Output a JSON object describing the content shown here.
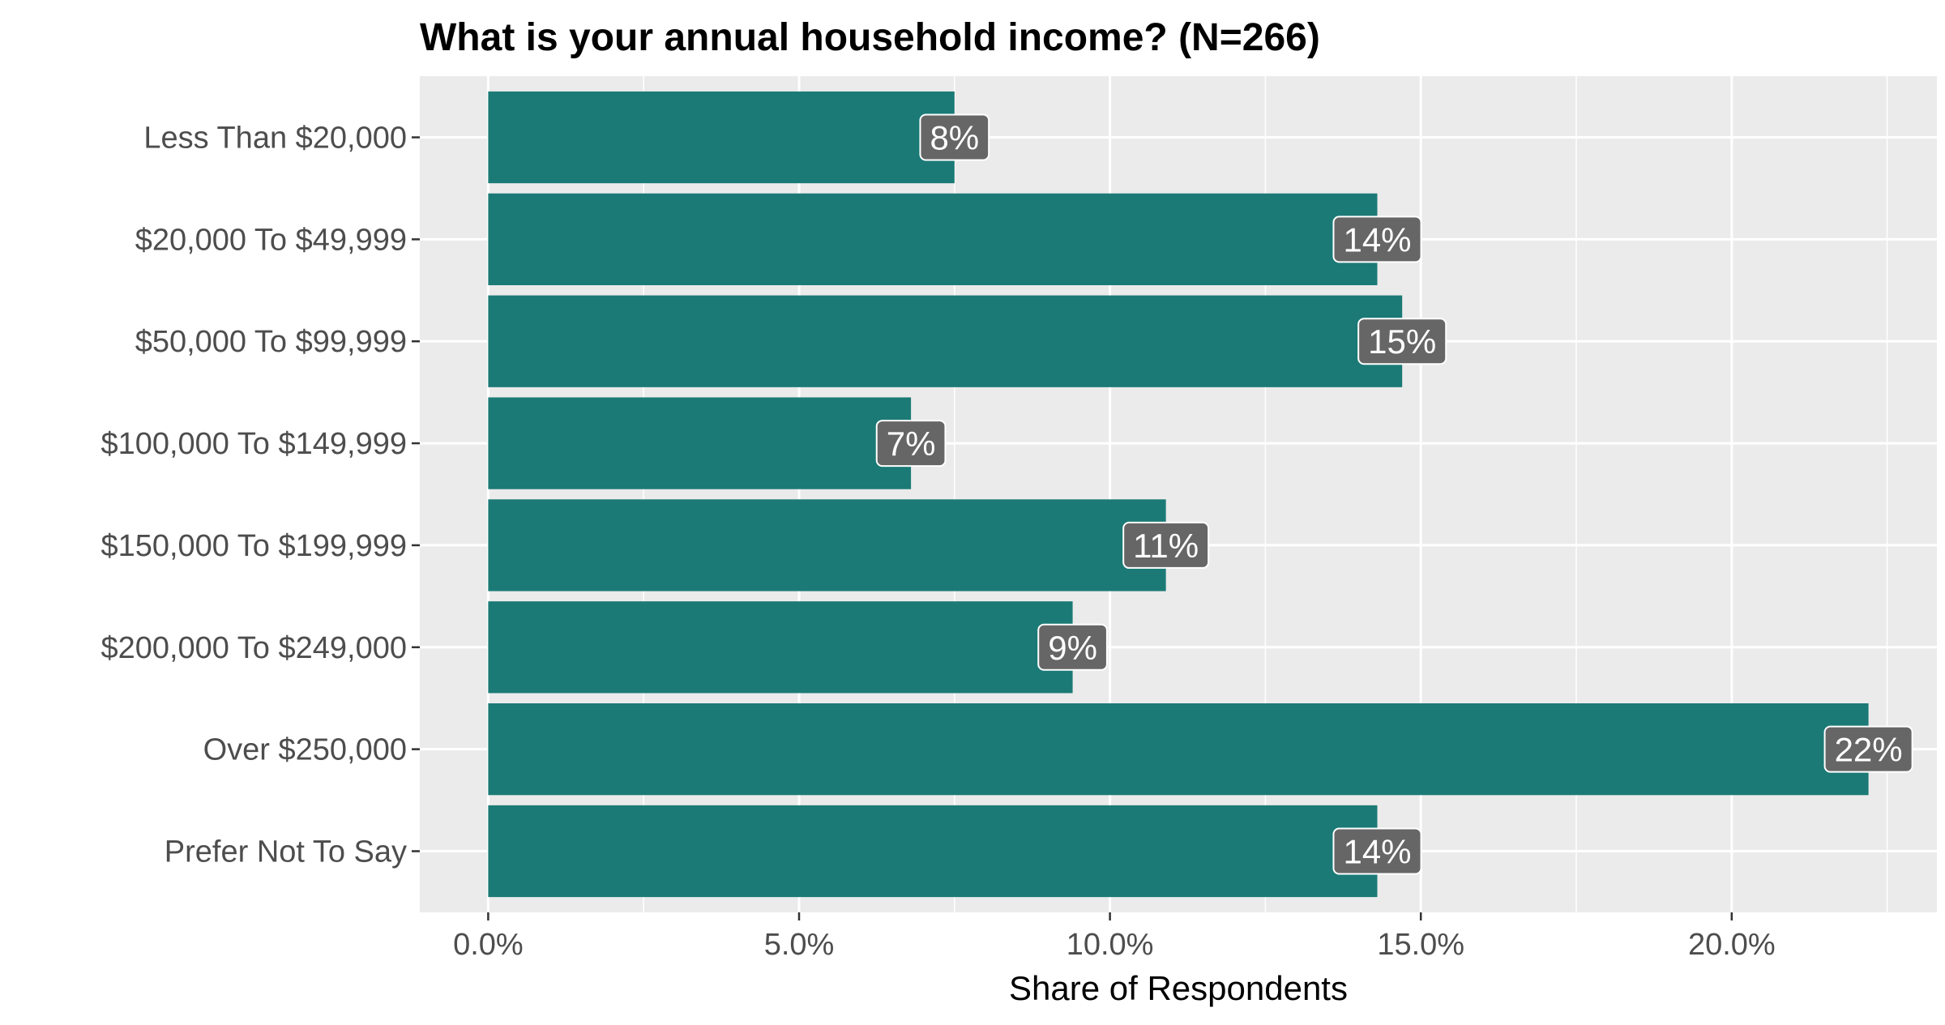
{
  "chart_data": {
    "type": "bar",
    "orientation": "horizontal",
    "title": "What is your annual household income? (N=266)",
    "xlabel": "Share of Respondents",
    "ylabel": "",
    "categories": [
      "Less Than $20,000",
      "$20,000 To $49,999",
      "$50,000 To $99,999",
      "$100,000 To $149,999",
      "$150,000 To $199,999",
      "$200,000 To $249,000",
      "Over $250,000",
      "Prefer Not To Say"
    ],
    "values": [
      7.5,
      14.3,
      14.7,
      6.8,
      10.9,
      9.4,
      22.2,
      14.3
    ],
    "data_labels": [
      "8%",
      "14%",
      "15%",
      "7%",
      "11%",
      "9%",
      "22%",
      "14%"
    ],
    "xticks": [
      0,
      5,
      10,
      15,
      20
    ],
    "xtick_labels": [
      "0.0%",
      "5.0%",
      "10.0%",
      "15.0%",
      "20.0%"
    ],
    "xlim": [
      -1.1,
      23.3
    ],
    "grid": true,
    "legend": "none",
    "colors": {
      "bar": "#1b7a76",
      "panel": "#ebebeb",
      "grid": "#ffffff",
      "label_box": "#666666",
      "label_text": "#ffffff"
    }
  }
}
